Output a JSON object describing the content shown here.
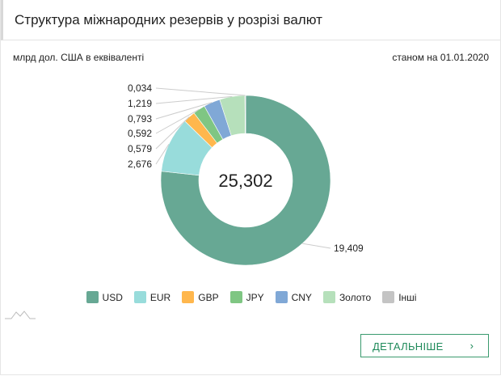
{
  "header": {
    "title": "Структура міжнародних резервів у розрізі валют"
  },
  "unit_label": "млрд дол. США в еквіваленті",
  "date_label": "станом на 01.01.2020",
  "button": {
    "label": "ДЕТАЛЬНІШЕ",
    "icon": "chevron-right-icon"
  },
  "chart_data": {
    "type": "pie",
    "donut": true,
    "center_label": "25,302",
    "categories": [
      "USD",
      "EUR",
      "GBP",
      "JPY",
      "CNY",
      "Золото",
      "Інші"
    ],
    "values": [
      19.409,
      2.676,
      0.579,
      0.592,
      0.793,
      1.219,
      0.034
    ],
    "data_labels": [
      "19,409",
      "2,676",
      "0,579",
      "0,592",
      "0,793",
      "1,219",
      "0,034"
    ],
    "colors": [
      "#67a894",
      "#98dcdb",
      "#ffb74d",
      "#7fc683",
      "#80a8d6",
      "#b6e0bb",
      "#c4c4c4"
    ],
    "legend_position": "bottom"
  }
}
